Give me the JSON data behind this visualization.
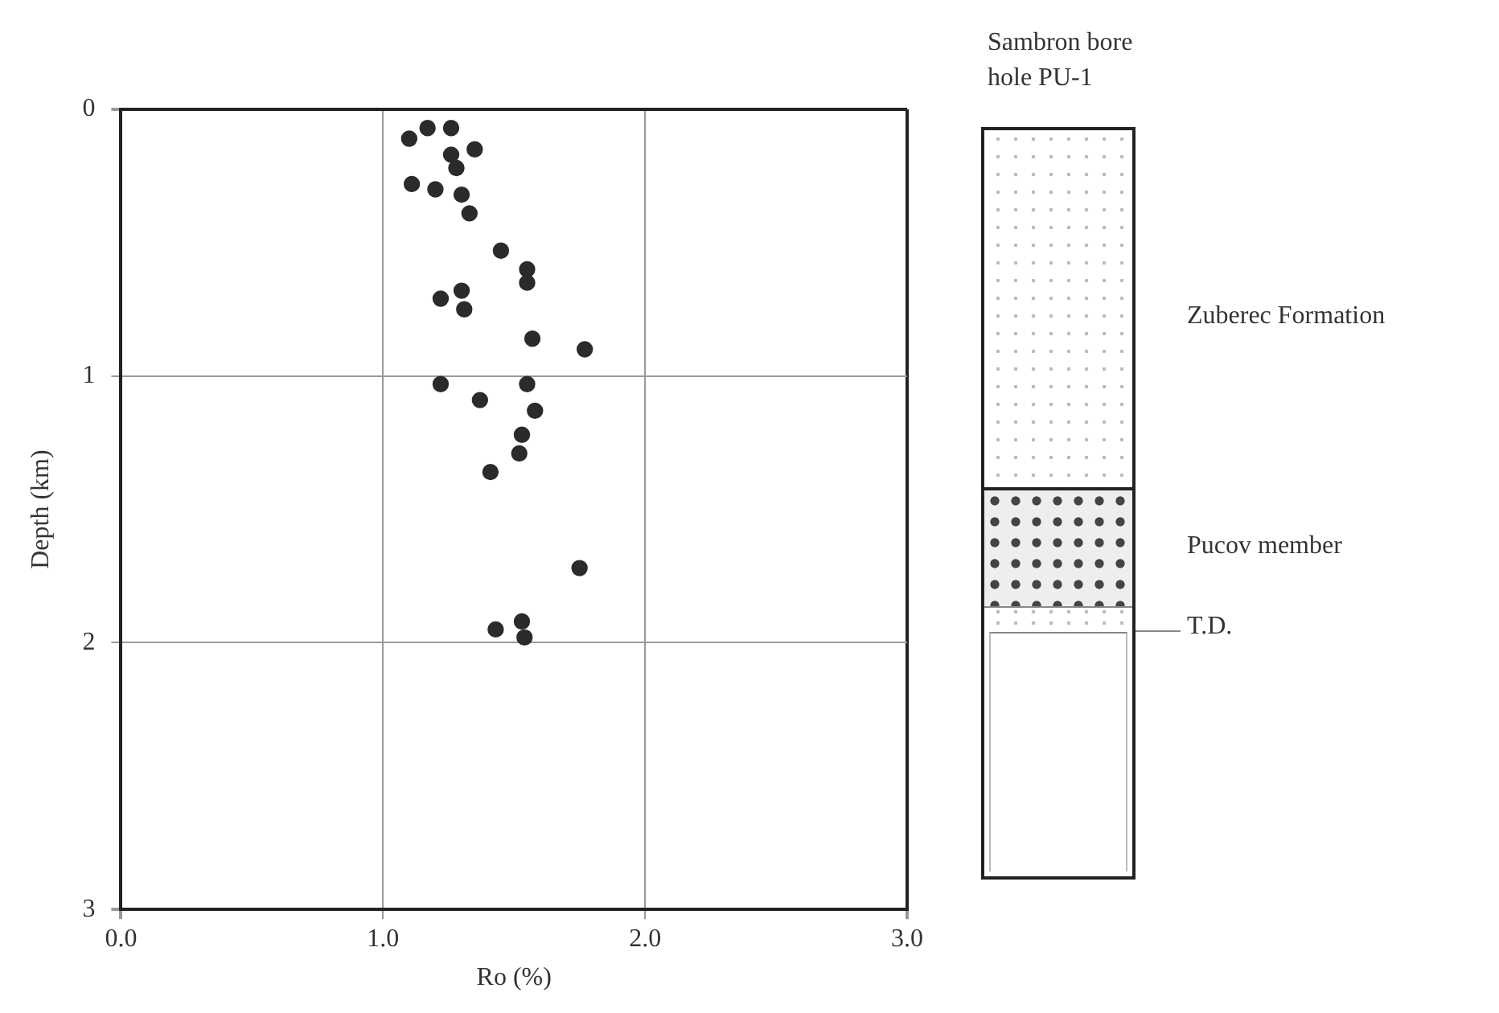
{
  "chart_data": {
    "type": "scatter",
    "xlabel": "Ro (%)",
    "ylabel": "Depth (km)",
    "annotations": [
      "Sambron bore hole PU-1",
      "Zuberec Formation",
      "Pucov member",
      "T.D."
    ],
    "xlim": [
      0,
      3
    ],
    "xticks": [
      {
        "value": 0,
        "label": "0.0"
      },
      {
        "value": 1,
        "label": "1.0"
      },
      {
        "value": 2,
        "label": "2.0"
      },
      {
        "value": 3,
        "label": "3.0"
      }
    ],
    "ylim": [
      3,
      0
    ],
    "yticks": [
      0,
      1,
      2,
      3
    ],
    "grid": true,
    "marker": "circle",
    "legend": false,
    "series": [
      {
        "color": "#2b2b2b",
        "x": [
          1.17,
          1.26,
          1.1,
          1.35,
          1.26,
          1.28,
          1.11,
          1.2,
          1.3,
          1.33,
          1.45,
          1.55,
          1.55,
          1.3,
          1.22,
          1.31,
          1.57,
          1.77,
          1.22,
          1.55,
          1.37,
          1.58,
          1.53,
          1.52,
          1.41,
          1.75,
          1.43,
          1.53,
          1.54
        ],
        "values": [
          0.07,
          0.07,
          0.11,
          0.15,
          0.17,
          0.22,
          0.28,
          0.3,
          0.32,
          0.39,
          0.53,
          0.6,
          0.65,
          0.68,
          0.71,
          0.75,
          0.86,
          0.9,
          1.03,
          1.03,
          1.09,
          1.13,
          1.22,
          1.29,
          1.36,
          1.72,
          1.95,
          1.92,
          1.98
        ]
      }
    ]
  }
}
